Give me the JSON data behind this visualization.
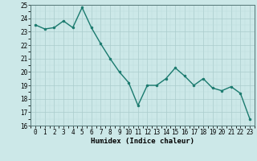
{
  "x": [
    0,
    1,
    2,
    3,
    4,
    5,
    6,
    7,
    8,
    9,
    10,
    11,
    12,
    13,
    14,
    15,
    16,
    17,
    18,
    19,
    20,
    21,
    22,
    23
  ],
  "y": [
    23.5,
    23.2,
    23.3,
    23.8,
    23.3,
    24.8,
    23.3,
    22.1,
    21.0,
    20.0,
    19.2,
    17.5,
    19.0,
    19.0,
    19.5,
    20.3,
    19.7,
    19.0,
    19.5,
    18.8,
    18.6,
    18.9,
    18.4,
    16.5
  ],
  "line_color": "#1a7a6e",
  "marker": "o",
  "marker_size": 2,
  "bg_color": "#cce8e8",
  "grid_color_major": "#aacccc",
  "grid_color_minor": "#bbdddd",
  "xlabel": "Humidex (Indice chaleur)",
  "xlim": [
    -0.5,
    23.5
  ],
  "ylim": [
    16,
    25
  ],
  "yticks": [
    16,
    17,
    18,
    19,
    20,
    21,
    22,
    23,
    24,
    25
  ],
  "xticks": [
    0,
    1,
    2,
    3,
    4,
    5,
    6,
    7,
    8,
    9,
    10,
    11,
    12,
    13,
    14,
    15,
    16,
    17,
    18,
    19,
    20,
    21,
    22,
    23
  ],
  "xlabel_fontsize": 6.5,
  "tick_fontsize": 5.5,
  "line_width": 1.0
}
